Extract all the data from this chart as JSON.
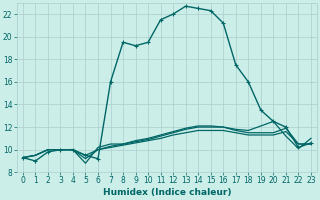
{
  "xlabel": "Humidex (Indice chaleur)",
  "xlim": [
    -0.5,
    23.5
  ],
  "ylim": [
    8,
    23
  ],
  "xticks": [
    0,
    1,
    2,
    3,
    4,
    5,
    6,
    7,
    8,
    9,
    10,
    11,
    12,
    13,
    14,
    15,
    16,
    17,
    18,
    19,
    20,
    21,
    22,
    23
  ],
  "yticks": [
    8,
    10,
    12,
    14,
    16,
    18,
    20,
    22
  ],
  "background_color": "#cceee8",
  "grid_color": "#aacccc",
  "line_color": "#006666",
  "curves": [
    {
      "y": [
        9.3,
        9.0,
        9.8,
        10.0,
        10.0,
        9.5,
        9.2,
        16.0,
        19.5,
        19.2,
        19.5,
        21.5,
        22.0,
        22.7,
        22.5,
        22.3,
        21.2,
        17.5,
        16.0,
        13.5,
        12.5,
        12.0,
        10.2,
        10.6
      ],
      "marker": true,
      "lw": 1.0
    },
    {
      "y": [
        9.3,
        9.5,
        10.0,
        10.0,
        10.0,
        8.8,
        10.2,
        10.5,
        10.5,
        10.8,
        11.0,
        11.3,
        11.6,
        11.9,
        12.1,
        12.1,
        12.0,
        11.8,
        11.7,
        12.1,
        12.5,
        11.2,
        10.1,
        11.0
      ],
      "marker": false,
      "lw": 0.9
    },
    {
      "y": [
        9.3,
        9.5,
        10.0,
        10.0,
        10.0,
        9.2,
        10.0,
        10.3,
        10.5,
        10.7,
        10.9,
        11.2,
        11.5,
        11.8,
        12.0,
        12.0,
        12.0,
        11.7,
        11.5,
        11.5,
        11.5,
        11.9,
        10.5,
        10.5
      ],
      "marker": false,
      "lw": 0.9
    },
    {
      "y": [
        9.3,
        9.5,
        10.0,
        10.0,
        10.0,
        9.5,
        10.0,
        10.2,
        10.4,
        10.6,
        10.8,
        11.0,
        11.3,
        11.5,
        11.7,
        11.7,
        11.7,
        11.5,
        11.3,
        11.3,
        11.3,
        11.6,
        10.5,
        10.5
      ],
      "marker": false,
      "lw": 0.9
    }
  ],
  "tick_fontsize": 5.5,
  "xlabel_fontsize": 6.5
}
